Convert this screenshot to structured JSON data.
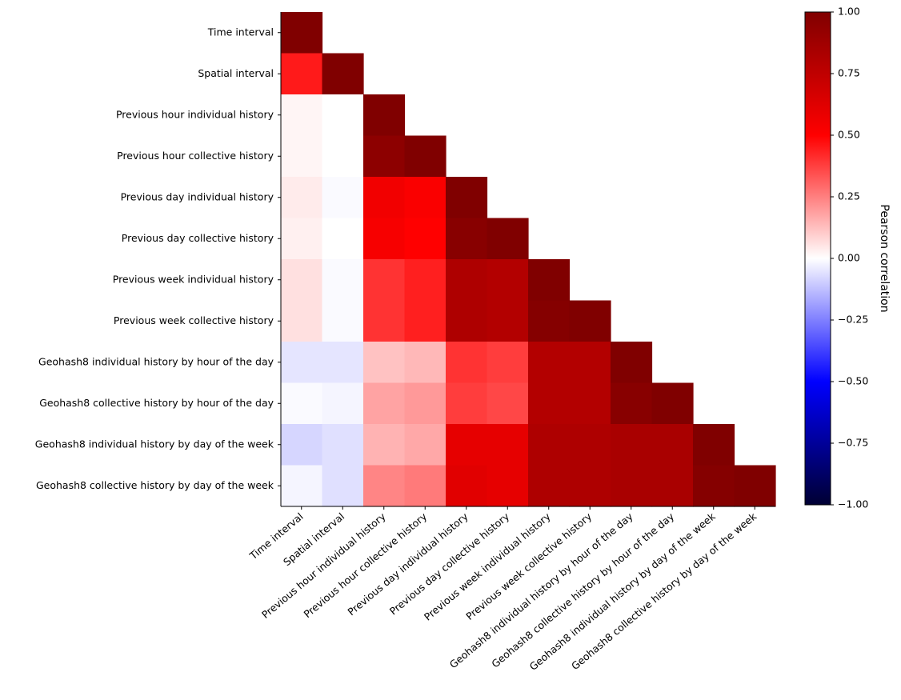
{
  "chart_data": {
    "type": "heatmap",
    "variables": [
      "Time interval",
      "Spatial interval",
      "Previous hour individual history",
      "Previous hour collective history",
      "Previous day individual history",
      "Previous day collective history",
      "Previous week individual history",
      "Previous week collective history",
      "Geohash8 individual history by hour of the day",
      "Geohash8 collective history by hour of the day",
      "Geohash8 individual history by day of the week",
      "Geohash8 collective history by day of the week"
    ],
    "matrix_lower_triangle": [
      [
        1.0
      ],
      [
        0.45,
        1.0
      ],
      [
        0.02,
        0.0,
        1.0
      ],
      [
        0.02,
        0.0,
        0.95,
        1.0
      ],
      [
        0.04,
        -0.01,
        0.55,
        0.52,
        1.0
      ],
      [
        0.03,
        0.0,
        0.53,
        0.5,
        0.97,
        1.0
      ],
      [
        0.06,
        -0.01,
        0.4,
        0.44,
        0.82,
        0.8,
        1.0
      ],
      [
        0.06,
        -0.01,
        0.4,
        0.44,
        0.82,
        0.8,
        0.98,
        1.0
      ],
      [
        -0.05,
        -0.05,
        0.12,
        0.14,
        0.4,
        0.38,
        0.8,
        0.8,
        1.0
      ],
      [
        -0.01,
        -0.02,
        0.18,
        0.2,
        0.38,
        0.36,
        0.8,
        0.8,
        0.97,
        1.0
      ],
      [
        -0.08,
        -0.06,
        0.15,
        0.17,
        0.6,
        0.6,
        0.82,
        0.82,
        0.84,
        0.84,
        1.0
      ],
      [
        -0.02,
        -0.06,
        0.24,
        0.26,
        0.62,
        0.6,
        0.82,
        0.82,
        0.84,
        0.84,
        0.98,
        1.0
      ]
    ],
    "colormap": "seismic",
    "vmin": -1.0,
    "vmax": 1.0,
    "colorbar_ticks": [
      "1.00",
      "0.75",
      "0.50",
      "0.25",
      "0.00",
      "−0.25",
      "−0.50",
      "−0.75",
      "−1.00"
    ],
    "colorbar_label": "Pearson correlation"
  }
}
